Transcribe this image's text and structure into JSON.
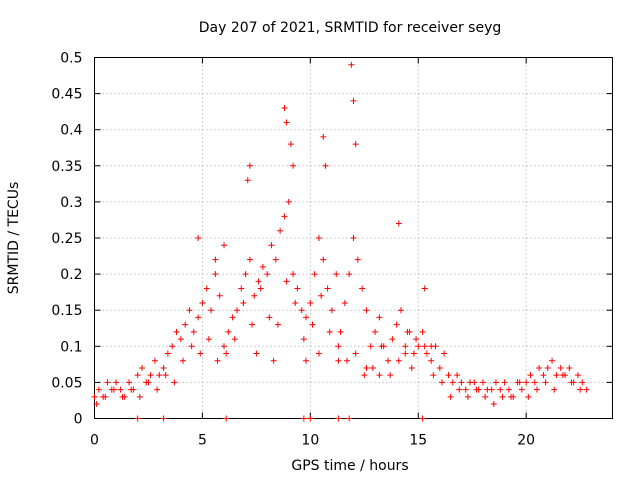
{
  "chart_data": {
    "type": "scatter",
    "title": "Day 207 of 2021, SRMTID for receiver seyg",
    "xlabel": "GPS time / hours",
    "ylabel": "SRMTID / TECUs",
    "xlim": [
      0,
      24
    ],
    "ylim": [
      0,
      0.5
    ],
    "xticks": [
      0,
      5,
      10,
      15,
      20
    ],
    "yticks": [
      0,
      0.05,
      0.1,
      0.15,
      0.2,
      0.25,
      0.3,
      0.35,
      0.4,
      0.45,
      0.5
    ],
    "xtick_labels": [
      "0",
      "5",
      "10",
      "15",
      "20"
    ],
    "ytick_labels": [
      "0",
      "0.05",
      "0.1",
      "0.15",
      "0.2",
      "0.25",
      "0.3",
      "0.35",
      "0.4",
      "0.45",
      "0.5"
    ],
    "grid": true,
    "marker": "+",
    "series": [
      {
        "name": "SRMTID",
        "color": "#ff0000",
        "x": [
          0.0,
          0.2,
          0.4,
          0.6,
          0.8,
          1.0,
          1.2,
          1.4,
          1.6,
          1.8,
          2.0,
          2.2,
          2.4,
          2.6,
          2.8,
          3.0,
          3.2,
          3.4,
          3.6,
          3.8,
          4.0,
          4.2,
          4.4,
          4.6,
          4.8,
          5.0,
          5.2,
          5.4,
          5.6,
          5.8,
          6.0,
          6.2,
          6.4,
          6.6,
          6.8,
          7.0,
          7.2,
          7.4,
          7.6,
          7.8,
          8.0,
          8.2,
          8.4,
          8.6,
          8.8,
          9.0,
          9.2,
          9.4,
          9.6,
          9.8,
          10.0,
          10.2,
          10.4,
          10.6,
          10.8,
          11.0,
          11.2,
          11.4,
          11.6,
          11.8,
          12.0,
          12.2,
          12.4,
          12.6,
          12.8,
          13.0,
          13.2,
          13.4,
          13.6,
          13.8,
          14.0,
          14.2,
          14.4,
          14.6,
          14.8,
          15.0,
          15.2,
          15.4,
          15.6,
          15.8,
          16.0,
          16.2,
          16.4,
          16.6,
          16.8,
          17.0,
          17.2,
          17.4,
          17.6,
          17.8,
          18.0,
          18.2,
          18.4,
          18.6,
          18.8,
          19.0,
          19.2,
          19.4,
          19.6,
          19.8,
          20.0,
          20.2,
          20.4,
          20.6,
          20.8,
          21.0,
          21.2,
          21.4,
          21.6,
          21.8,
          22.0,
          22.2,
          22.4,
          22.6,
          22.8,
          0.1,
          0.5,
          0.9,
          1.3,
          1.7,
          2.1,
          2.5,
          2.9,
          3.3,
          3.7,
          4.1,
          4.5,
          4.9,
          5.3,
          5.7,
          6.1,
          6.5,
          6.9,
          7.3,
          7.7,
          8.1,
          8.5,
          8.9,
          9.3,
          9.7,
          10.1,
          10.5,
          10.9,
          11.3,
          11.7,
          12.1,
          12.5,
          12.9,
          13.3,
          13.7,
          14.1,
          14.5,
          14.9,
          15.3,
          15.7,
          16.1,
          16.5,
          16.9,
          17.3,
          17.7,
          18.1,
          18.5,
          18.9,
          19.3,
          19.7,
          20.1,
          20.5,
          20.9,
          21.3,
          21.7,
          22.1,
          22.5,
          7.1,
          7.2,
          8.8,
          8.9,
          9.1,
          9.2,
          10.6,
          10.7,
          11.9,
          12.0,
          12.1,
          14.1,
          15.3,
          4.8,
          5.6,
          6.0,
          7.5,
          8.3,
          9.8,
          10.4,
          11.3,
          12.6,
          13.2,
          14.4,
          14.7,
          15.6,
          2.0,
          3.2,
          6.1,
          9.7,
          10.0,
          11.3,
          11.8,
          15.2
        ],
        "y": [
          0.03,
          0.04,
          0.03,
          0.05,
          0.04,
          0.05,
          0.04,
          0.03,
          0.05,
          0.04,
          0.06,
          0.07,
          0.05,
          0.06,
          0.08,
          0.06,
          0.07,
          0.09,
          0.1,
          0.12,
          0.11,
          0.13,
          0.15,
          0.12,
          0.14,
          0.16,
          0.18,
          0.15,
          0.2,
          0.17,
          0.1,
          0.12,
          0.14,
          0.15,
          0.18,
          0.2,
          0.22,
          0.17,
          0.19,
          0.21,
          0.2,
          0.24,
          0.22,
          0.26,
          0.28,
          0.3,
          0.2,
          0.18,
          0.15,
          0.14,
          0.16,
          0.2,
          0.25,
          0.22,
          0.18,
          0.15,
          0.2,
          0.12,
          0.16,
          0.2,
          0.25,
          0.22,
          0.18,
          0.15,
          0.1,
          0.12,
          0.14,
          0.1,
          0.08,
          0.11,
          0.13,
          0.15,
          0.1,
          0.12,
          0.09,
          0.1,
          0.12,
          0.09,
          0.08,
          0.1,
          0.07,
          0.09,
          0.06,
          0.05,
          0.06,
          0.05,
          0.04,
          0.05,
          0.05,
          0.04,
          0.05,
          0.04,
          0.04,
          0.05,
          0.04,
          0.05,
          0.04,
          0.03,
          0.05,
          0.04,
          0.05,
          0.06,
          0.05,
          0.07,
          0.06,
          0.07,
          0.08,
          0.06,
          0.07,
          0.06,
          0.07,
          0.05,
          0.06,
          0.05,
          0.04,
          0.02,
          0.03,
          0.04,
          0.03,
          0.04,
          0.03,
          0.05,
          0.04,
          0.06,
          0.05,
          0.08,
          0.1,
          0.09,
          0.11,
          0.08,
          0.09,
          0.11,
          0.16,
          0.13,
          0.18,
          0.14,
          0.13,
          0.19,
          0.16,
          0.11,
          0.13,
          0.17,
          0.12,
          0.1,
          0.08,
          0.09,
          0.06,
          0.07,
          0.1,
          0.06,
          0.08,
          0.12,
          0.11,
          0.1,
          0.06,
          0.05,
          0.03,
          0.04,
          0.03,
          0.04,
          0.03,
          0.02,
          0.03,
          0.03,
          0.05,
          0.03,
          0.04,
          0.05,
          0.04,
          0.06,
          0.05,
          0.04,
          0.33,
          0.35,
          0.43,
          0.41,
          0.38,
          0.35,
          0.39,
          0.35,
          0.49,
          0.44,
          0.38,
          0.27,
          0.18,
          0.25,
          0.22,
          0.24,
          0.09,
          0.08,
          0.08,
          0.09,
          0.08,
          0.07,
          0.06,
          0.09,
          0.07,
          0.1,
          0.0,
          0.0,
          0.0,
          0.0,
          0.0,
          0.0,
          0.0,
          0.0
        ]
      }
    ]
  }
}
